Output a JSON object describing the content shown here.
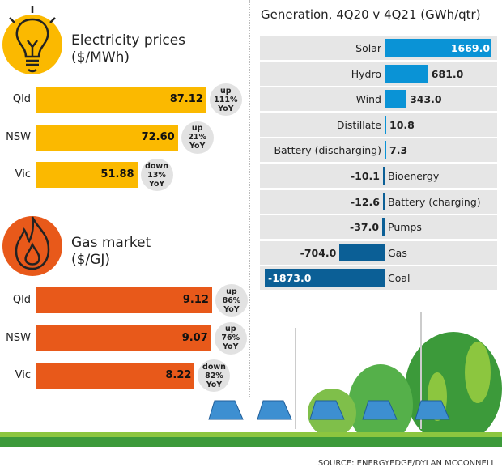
{
  "electricity": {
    "title": "Electricity prices",
    "unit": "($/MWh)",
    "color": "#fbb900",
    "rows": [
      {
        "label": "Qld",
        "value": 87.12,
        "text": "87.12",
        "change": [
          "up",
          "111%",
          "YoY"
        ]
      },
      {
        "label": "NSW",
        "value": 72.6,
        "text": "72.60",
        "change": [
          "up",
          "21%",
          "YoY"
        ]
      },
      {
        "label": "Vic",
        "value": 51.88,
        "text": "51.88",
        "change": [
          "down",
          "13%",
          "YoY"
        ]
      }
    ]
  },
  "gas": {
    "title": "Gas market",
    "unit": "($/GJ)",
    "color": "#e8591a",
    "rows": [
      {
        "label": "Qld",
        "value": 9.12,
        "text": "9.12",
        "change": [
          "up",
          "86%",
          "YoY"
        ]
      },
      {
        "label": "NSW",
        "value": 9.07,
        "text": "9.07",
        "change": [
          "up",
          "76%",
          "YoY"
        ]
      },
      {
        "label": "Vic",
        "value": 8.22,
        "text": "8.22",
        "change": [
          "down",
          "82%",
          "YoY"
        ]
      }
    ]
  },
  "chart_data": {
    "type": "bar",
    "title": "Generation, 4Q20 v 4Q21 (GWh/qtr)",
    "categories": [
      "Solar",
      "Hydro",
      "Wind",
      "Distillate",
      "Battery (discharging)",
      "Bioenergy",
      "Battery (charging)",
      "Pumps",
      "Gas",
      "Coal"
    ],
    "values": [
      1669.0,
      681.0,
      343.0,
      10.8,
      7.3,
      -10.1,
      -12.6,
      -37.0,
      -704.0,
      -1873.0
    ],
    "labels": [
      "1669.0",
      "681.0",
      "343.0",
      "10.8",
      "7.3",
      "-10.1",
      "-12.6",
      "-37.0",
      "-704.0",
      "-1873.0"
    ],
    "colors": {
      "positive": "#0a93d6",
      "negative": "#0b5f96"
    }
  },
  "source": "SOURCE: ENERGYEDGE/DYLAN MCCONNELL"
}
